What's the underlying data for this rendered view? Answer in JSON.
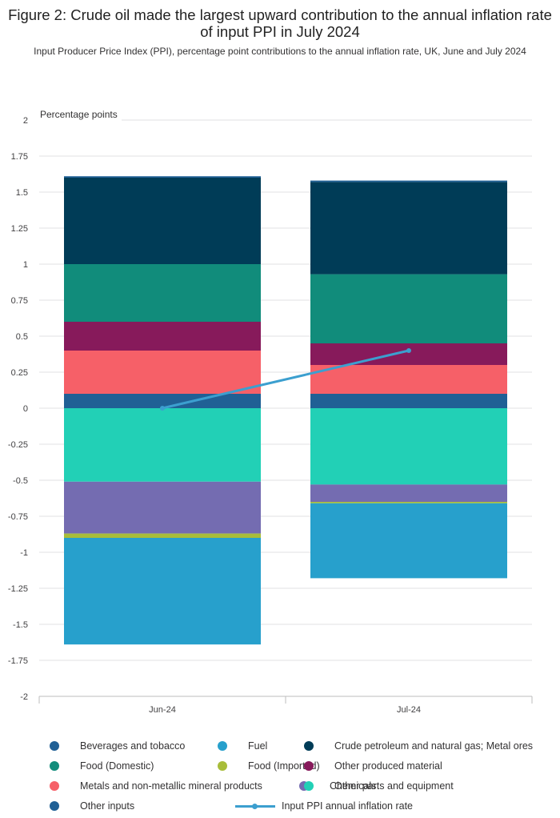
{
  "title": "Figure 2: Crude oil made the largest upward contribution to the annual inflation rate of input PPI in July 2024",
  "subtitle": "Input Producer Price Index (PPI), percentage point contributions to the annual inflation rate, UK, June and July 2024",
  "chart_data": {
    "type": "bar",
    "stacked": true,
    "ylabel": "Percentage points",
    "ylim": [
      -2,
      2
    ],
    "yticks": [
      2,
      1.75,
      1.5,
      1.25,
      1,
      0.75,
      0.5,
      0.25,
      0,
      -0.25,
      -0.5,
      -0.75,
      -1,
      -1.25,
      -1.5,
      -1.75,
      -2
    ],
    "ytick_labels": [
      "2",
      "1.75",
      "1.5",
      "1.25",
      "1",
      "0.75",
      "0.5",
      "0.25",
      "0",
      "-0.25",
      "-0.5",
      "-0.75",
      "-1",
      "-1.25",
      "-1.5",
      "-1.75",
      "-2"
    ],
    "categories": [
      "Jun-24",
      "Jul-24"
    ],
    "grid": true,
    "legend_position": "bottom",
    "series": [
      {
        "name": "Beverages and tobacco",
        "color": "#206095",
        "values": [
          0.01,
          0.01
        ]
      },
      {
        "name": "Fuel",
        "color": "#27a0cc",
        "values": [
          -0.74,
          -0.52
        ]
      },
      {
        "name": "Crude petroleum and natural gas; Metal ores",
        "color": "#003c57",
        "values": [
          0.6,
          0.64
        ]
      },
      {
        "name": "Food (Domestic)",
        "color": "#118c7b",
        "values": [
          0.4,
          0.48
        ]
      },
      {
        "name": "Food (Imported)",
        "color": "#a8bd3a",
        "values": [
          -0.03,
          -0.01
        ]
      },
      {
        "name": "Other produced material",
        "color": "#871a5b",
        "values": [
          0.2,
          0.15
        ]
      },
      {
        "name": "Metals and non-metallic mineral products",
        "color": "#f66068",
        "values": [
          0.3,
          0.2
        ]
      },
      {
        "name": "Chemicals",
        "color": "#746cb1",
        "values": [
          -0.36,
          -0.12
        ]
      },
      {
        "name": "Other parts and equipment",
        "color": "#22d0b6",
        "values": [
          -0.51,
          -0.53
        ]
      },
      {
        "name": "Other inputs",
        "color": "#206095",
        "values": [
          0.1,
          0.1
        ]
      }
    ],
    "stack_order_positive": [
      "Other inputs",
      "Metals and non-metallic mineral products",
      "Other produced material",
      "Food (Domestic)",
      "Crude petroleum and natural gas; Metal ores",
      "Beverages and tobacco"
    ],
    "stack_order_negative": [
      "Other parts and equipment",
      "Chemicals",
      "Food (Imported)",
      "Fuel"
    ],
    "line_series": {
      "name": "Input PPI annual inflation rate",
      "color": "#3c9fcf",
      "values": [
        0.0,
        0.4
      ]
    }
  }
}
